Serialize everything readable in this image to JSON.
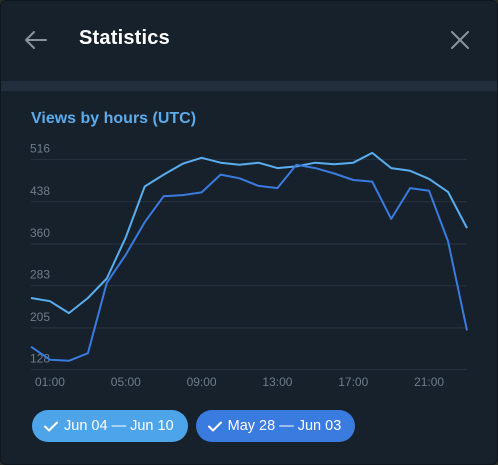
{
  "window": {
    "title": "Statistics"
  },
  "section": {
    "title": "Views by hours (UTC)"
  },
  "icons": {
    "back": "arrow-left-icon",
    "close": "close-icon",
    "check": "checkmark-icon"
  },
  "colors": {
    "series_a": "#59aef0",
    "series_b": "#3a7be0",
    "accent_text": "#5cacec",
    "background": "#17212b"
  },
  "legend": [
    {
      "label": "Jun 04 — Jun 10",
      "color": "#4ea4e8"
    },
    {
      "label": "May 28 — Jun 03",
      "color": "#3a7be0"
    }
  ],
  "chart_data": {
    "type": "line",
    "title": "Views by hours (UTC)",
    "x": [
      0,
      1,
      2,
      3,
      4,
      5,
      6,
      7,
      8,
      9,
      10,
      11,
      12,
      13,
      14,
      15,
      16,
      17,
      18,
      19,
      20,
      21,
      22,
      23
    ],
    "x_tick_labels": [
      "01:00",
      "05:00",
      "09:00",
      "13:00",
      "17:00",
      "21:00"
    ],
    "x_tick_positions": [
      1,
      5,
      9,
      13,
      17,
      21
    ],
    "y_ticks": [
      128,
      205,
      283,
      360,
      438,
      516
    ],
    "ylim": [
      118,
      530
    ],
    "grid": true,
    "series": [
      {
        "name": "Jun 04 — Jun 10",
        "color": "#59aef0",
        "values": [
          240,
          234,
          212,
          240,
          276,
          352,
          446,
          468,
          488,
          499,
          490,
          486,
          490,
          480,
          483,
          490,
          487,
          490,
          508,
          480,
          475,
          460,
          436,
          369
        ]
      },
      {
        "name": "May 28 — Jun 03",
        "color": "#3a7be0",
        "values": [
          150,
          126,
          124,
          138,
          268,
          320,
          380,
          428,
          430,
          435,
          468,
          461,
          447,
          443,
          486,
          480,
          470,
          458,
          455,
          386,
          443,
          438,
          345,
          180
        ]
      }
    ]
  }
}
